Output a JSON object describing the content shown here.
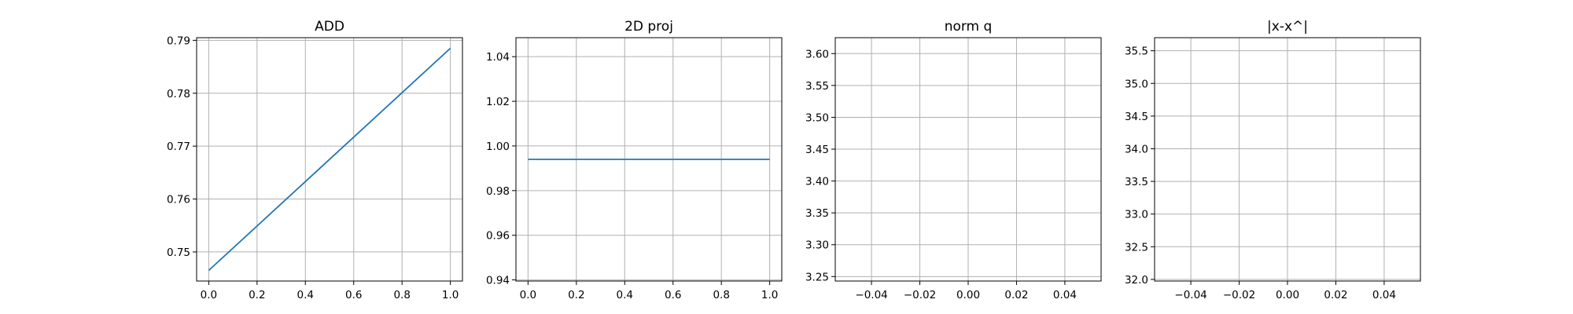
{
  "chart_data": [
    {
      "type": "line",
      "title": "ADD",
      "xlabel": "",
      "ylabel": "",
      "grid": true,
      "xlim": [
        -0.05,
        1.05
      ],
      "ylim": [
        0.7445,
        0.7905
      ],
      "xticks": [
        0.0,
        0.2,
        0.4,
        0.6,
        0.8,
        1.0
      ],
      "xtick_labels": [
        "0.0",
        "0.2",
        "0.4",
        "0.6",
        "0.8",
        "1.0"
      ],
      "yticks": [
        0.75,
        0.76,
        0.77,
        0.78,
        0.79
      ],
      "ytick_labels": [
        "0.75",
        "0.76",
        "0.77",
        "0.78",
        "0.79"
      ],
      "series": [
        {
          "color": "#1f77b4",
          "x": [
            0.0,
            1.0
          ],
          "y": [
            0.7465,
            0.7885
          ]
        }
      ]
    },
    {
      "type": "line",
      "title": "2D proj",
      "xlabel": "",
      "ylabel": "",
      "grid": true,
      "xlim": [
        -0.05,
        1.05
      ],
      "ylim": [
        0.9395,
        1.0485
      ],
      "xticks": [
        0.0,
        0.2,
        0.4,
        0.6,
        0.8,
        1.0
      ],
      "xtick_labels": [
        "0.0",
        "0.2",
        "0.4",
        "0.6",
        "0.8",
        "1.0"
      ],
      "yticks": [
        0.94,
        0.96,
        0.98,
        1.0,
        1.02,
        1.04
      ],
      "ytick_labels": [
        "0.94",
        "0.96",
        "0.98",
        "1.00",
        "1.02",
        "1.04"
      ],
      "series": [
        {
          "color": "#1f77b4",
          "x": [
            0.0,
            1.0
          ],
          "y": [
            0.994,
            0.994
          ]
        }
      ]
    },
    {
      "type": "line",
      "title": "norm q",
      "xlabel": "",
      "ylabel": "",
      "grid": true,
      "xlim": [
        -0.055,
        0.055
      ],
      "ylim": [
        3.243,
        3.625
      ],
      "xticks": [
        -0.04,
        -0.02,
        0.0,
        0.02,
        0.04
      ],
      "xtick_labels": [
        "−0.04",
        "−0.02",
        "0.00",
        "0.02",
        "0.04"
      ],
      "yticks": [
        3.25,
        3.3,
        3.35,
        3.4,
        3.45,
        3.5,
        3.55,
        3.6
      ],
      "ytick_labels": [
        "3.25",
        "3.30",
        "3.35",
        "3.40",
        "3.45",
        "3.50",
        "3.55",
        "3.60"
      ],
      "series": []
    },
    {
      "type": "line",
      "title": "|x-x^|",
      "xlabel": "",
      "ylabel": "",
      "grid": true,
      "xlim": [
        -0.055,
        0.055
      ],
      "ylim": [
        31.975,
        35.7
      ],
      "xticks": [
        -0.04,
        -0.02,
        0.0,
        0.02,
        0.04
      ],
      "xtick_labels": [
        "−0.04",
        "−0.02",
        "0.00",
        "0.02",
        "0.04"
      ],
      "yticks": [
        32.0,
        32.5,
        33.0,
        33.5,
        34.0,
        34.5,
        35.0,
        35.5
      ],
      "ytick_labels": [
        "32.0",
        "32.5",
        "33.0",
        "33.5",
        "34.0",
        "34.5",
        "35.0",
        "35.5"
      ],
      "series": []
    }
  ],
  "style": {
    "grid_color": "#b0b0b0",
    "axes_color": "#000000",
    "background": "#ffffff"
  }
}
